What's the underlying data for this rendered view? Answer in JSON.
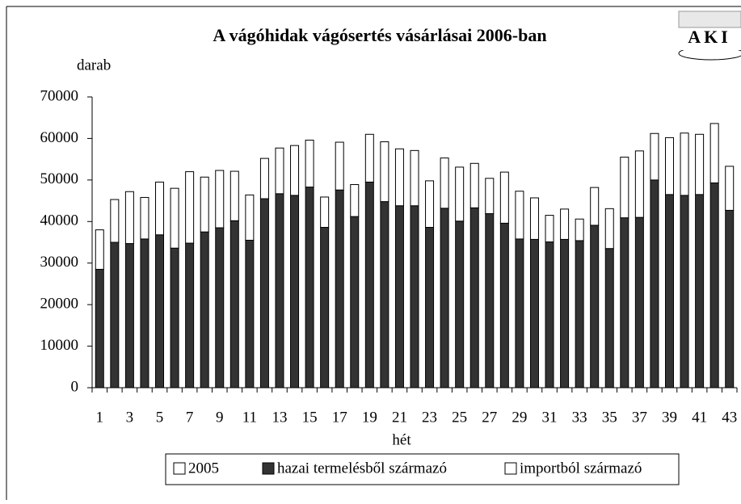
{
  "chart_data": {
    "type": "bar",
    "stacked": true,
    "title": "A vágóhidak vágósertés vásárlásai 2006-ban",
    "logo": "AKI",
    "y_label": "darab",
    "x_label": "hét",
    "categories": [
      1,
      null,
      3,
      null,
      5,
      null,
      7,
      null,
      9,
      null,
      11,
      null,
      13,
      null,
      15,
      null,
      17,
      null,
      19,
      null,
      21,
      null,
      23,
      null,
      25,
      null,
      27,
      null,
      29,
      null,
      31,
      null,
      33,
      null,
      35,
      null,
      37,
      null,
      39,
      null,
      41,
      null,
      43
    ],
    "series": [
      {
        "name": "2005",
        "color": "#ffffff",
        "values": [
          null,
          null,
          null,
          null,
          null,
          null,
          null,
          null,
          null,
          null,
          null,
          null,
          null,
          null,
          null,
          null,
          null,
          null,
          null,
          null,
          null,
          null,
          null,
          null,
          null,
          null,
          null,
          null,
          null,
          null,
          null,
          null,
          null,
          null,
          null,
          null,
          null,
          null,
          null,
          null,
          null,
          null,
          null
        ]
      },
      {
        "name": "hazai termelésből származó",
        "color": "#333333",
        "values": [
          28500,
          35000,
          34700,
          35800,
          36800,
          33600,
          34800,
          37500,
          38500,
          40200,
          35500,
          45500,
          46700,
          46300,
          48300,
          38600,
          47600,
          41200,
          49500,
          44800,
          43800,
          43800,
          38600,
          43200,
          40100,
          43300,
          41900,
          39600,
          35800,
          35700,
          35100,
          35700,
          35400,
          39100,
          33500,
          40900,
          41000,
          50000,
          46500,
          46300,
          46500,
          49300,
          42700
        ]
      },
      {
        "name": "importból származó",
        "color": "#ffffff",
        "values": [
          9500,
          10300,
          12500,
          10000,
          12700,
          14400,
          17200,
          13200,
          13800,
          11900,
          10900,
          9700,
          11000,
          12000,
          11300,
          7300,
          11500,
          7700,
          11500,
          14400,
          13700,
          13300,
          11200,
          12100,
          13000,
          10700,
          8500,
          12300,
          11500,
          10000,
          6400,
          7300,
          5200,
          9100,
          9600,
          14600,
          16000,
          11200,
          13700,
          15000,
          14500,
          14300,
          10600
        ]
      }
    ],
    "ylim": [
      0,
      70000
    ],
    "yticks": [
      0,
      10000,
      20000,
      30000,
      40000,
      50000,
      60000,
      70000
    ],
    "grid": false,
    "legend": "bottom"
  }
}
